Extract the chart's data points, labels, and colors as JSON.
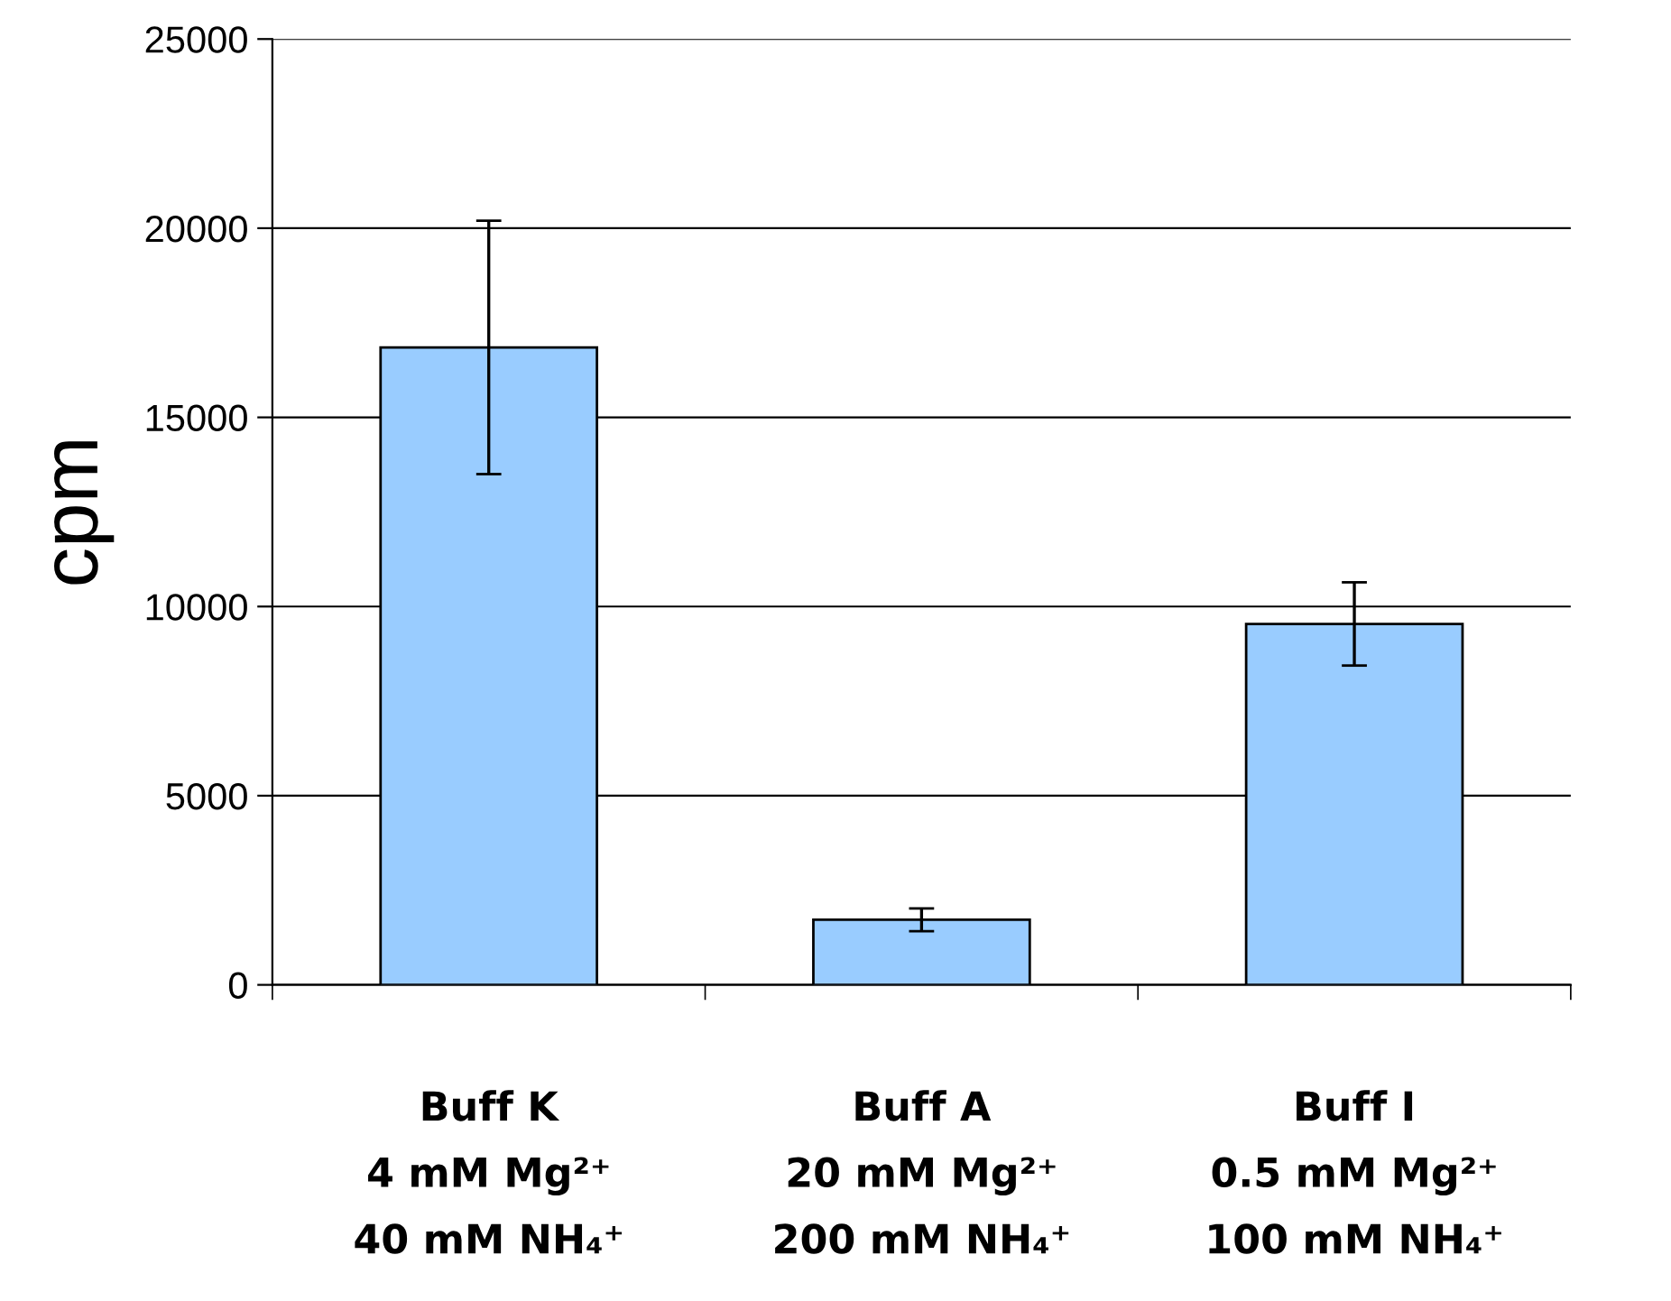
{
  "chart_data": {
    "type": "bar",
    "categories": [
      "Buff K\n4 mM Mg²⁺\n40 mM NH₄⁺",
      "Buff A\n20 mM Mg²⁺\n200 mM NH₄⁺",
      "Buff I\n0.5 mM Mg²⁺\n100 mM NH₄⁺"
    ],
    "values": [
      16850,
      1720,
      9540
    ],
    "errors": [
      3350,
      300,
      1100
    ],
    "color": "#99ccff",
    "ylabel": "cpm",
    "ylim": [
      0,
      25000
    ],
    "yticks": [
      0,
      5000,
      10000,
      15000,
      20000,
      25000
    ],
    "grid": "y"
  }
}
